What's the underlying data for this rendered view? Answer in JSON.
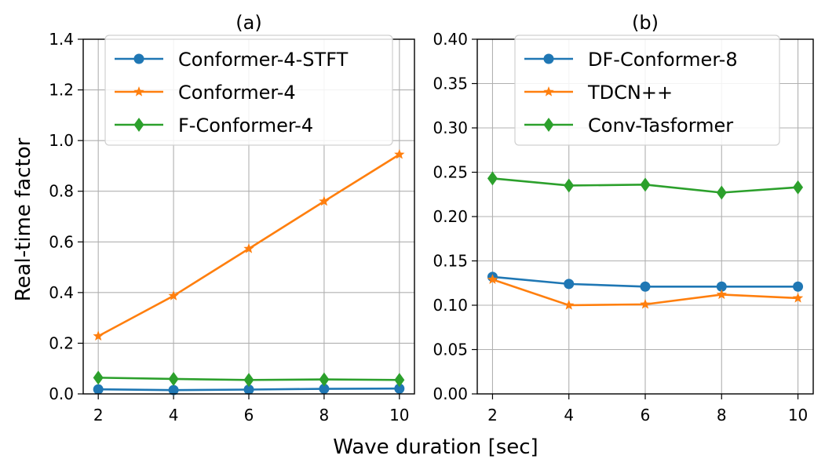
{
  "figure": {
    "xlabel": "Wave duration [sec]",
    "ylabel": "Real-time factor"
  },
  "chart_data": [
    {
      "type": "line",
      "title": "(a)",
      "x": [
        2,
        4,
        6,
        8,
        10
      ],
      "xticks": [
        2,
        4,
        6,
        8,
        10
      ],
      "xlim": [
        1.6,
        10.4
      ],
      "ylim": [
        0,
        1.4
      ],
      "yticks": [
        0.0,
        0.2,
        0.4,
        0.6,
        0.8,
        1.0,
        1.2,
        1.4
      ],
      "ytick_labels": [
        "0.0",
        "0.2",
        "0.4",
        "0.6",
        "0.8",
        "1.0",
        "1.2",
        "1.4"
      ],
      "grid": true,
      "legend_position": "top-center",
      "series": [
        {
          "name": "Conformer-4-STFT",
          "color": "#1f77b4",
          "marker": "circle",
          "values": [
            0.018,
            0.015,
            0.017,
            0.02,
            0.021
          ]
        },
        {
          "name": "Conformer-4",
          "color": "#ff7f0e",
          "marker": "star",
          "values": [
            0.228,
            0.387,
            0.573,
            0.76,
            0.945
          ]
        },
        {
          "name": "F-Conformer-4",
          "color": "#2ca02c",
          "marker": "diamond",
          "values": [
            0.064,
            0.059,
            0.055,
            0.057,
            0.055
          ]
        }
      ]
    },
    {
      "type": "line",
      "title": "(b)",
      "x": [
        2,
        4,
        6,
        8,
        10
      ],
      "xticks": [
        2,
        4,
        6,
        8,
        10
      ],
      "xlim": [
        1.6,
        10.4
      ],
      "ylim": [
        0,
        0.4
      ],
      "yticks": [
        0.0,
        0.05,
        0.1,
        0.15,
        0.2,
        0.25,
        0.3,
        0.35,
        0.4
      ],
      "ytick_labels": [
        "0.00",
        "0.05",
        "0.10",
        "0.15",
        "0.20",
        "0.25",
        "0.30",
        "0.35",
        "0.40"
      ],
      "grid": true,
      "legend_position": "top-center",
      "series": [
        {
          "name": "DF-Conformer-8",
          "color": "#1f77b4",
          "marker": "circle",
          "values": [
            0.132,
            0.124,
            0.121,
            0.121,
            0.121
          ]
        },
        {
          "name": "TDCN++",
          "color": "#ff7f0e",
          "marker": "star",
          "values": [
            0.129,
            0.1,
            0.101,
            0.112,
            0.108
          ]
        },
        {
          "name": "Conv-Tasformer",
          "color": "#2ca02c",
          "marker": "diamond",
          "values": [
            0.243,
            0.235,
            0.236,
            0.227,
            0.233
          ]
        }
      ]
    }
  ]
}
